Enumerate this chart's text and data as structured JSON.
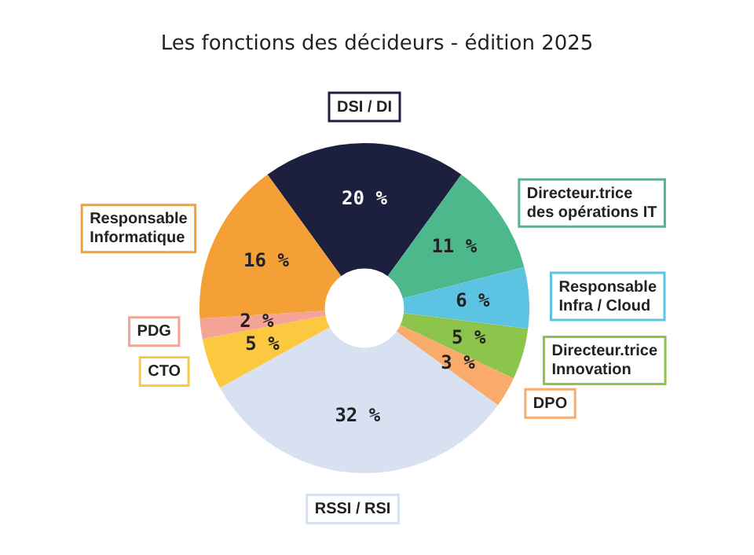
{
  "chart_data": {
    "type": "donut",
    "title": "Les fonctions des décideurs - édition 2025",
    "categories": [
      "DSI / DI",
      "Directeur.trice\ndes opérations IT",
      "Responsable\nInfra / Cloud",
      "Directeur.trice\nInnovation",
      "DPO",
      "RSSI / RSI",
      "CTO",
      "PDG",
      "Responsable\nInformatique"
    ],
    "values": [
      20,
      11,
      6,
      5,
      3,
      32,
      5,
      2,
      16
    ],
    "colors": [
      "#1c1f3e",
      "#4cb88c",
      "#5cc3e2",
      "#8cc44c",
      "#f9ab6b",
      "#d8e1f2",
      "#fbc840",
      "#f4a497",
      "#f59f37"
    ],
    "value_labels": [
      "20 %",
      "11 %",
      "6 %",
      "5 %",
      "3 %",
      "32 %",
      "5 %",
      "2 %",
      "16 %"
    ],
    "legend": false
  }
}
